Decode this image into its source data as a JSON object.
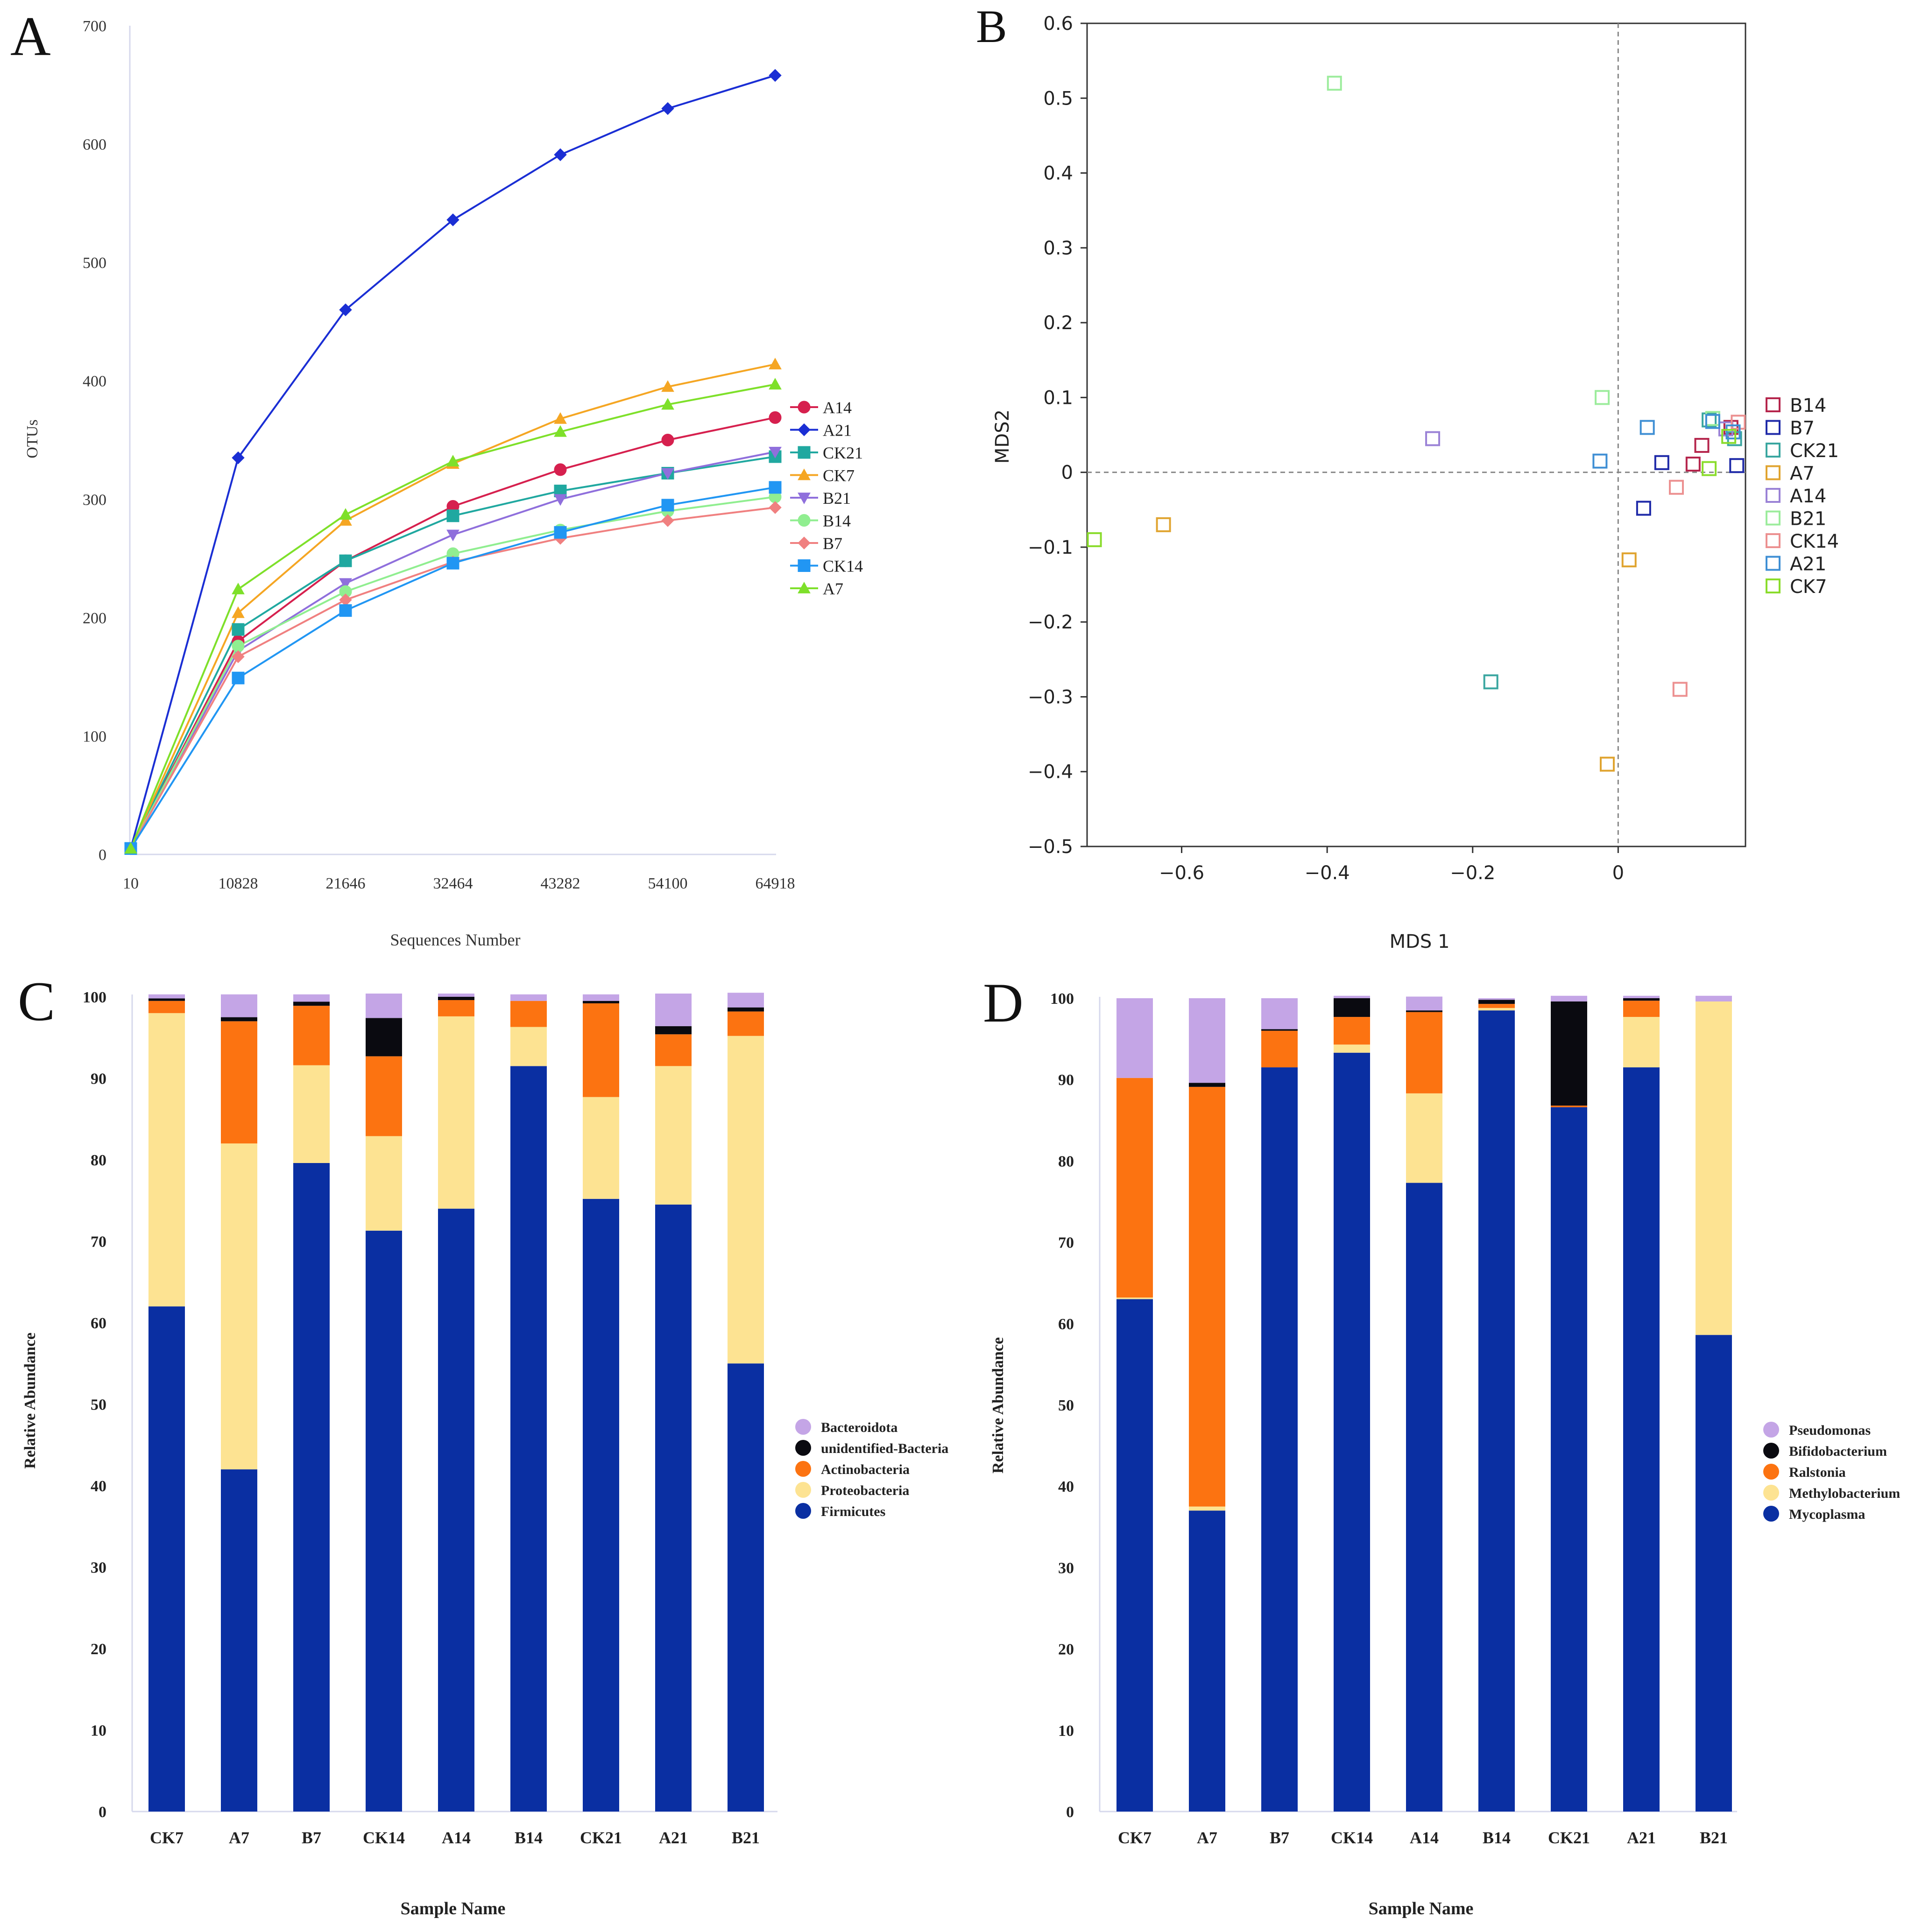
{
  "panels": {
    "a": "A",
    "b": "B",
    "c": "C",
    "d": "D"
  },
  "chart_data": [
    {
      "id": "A",
      "type": "line",
      "title": "",
      "xlabel": "Sequences Number",
      "ylabel": "OTUs",
      "categories": [
        "10",
        "10828",
        "21646",
        "32464",
        "43282",
        "54100",
        "64918"
      ],
      "ylim": [
        0,
        700
      ],
      "yticks": [
        0,
        100,
        200,
        300,
        400,
        500,
        600,
        700
      ],
      "legend": "right",
      "series": [
        {
          "name": "A14",
          "color": "#d6204e",
          "marker": "circle",
          "values": [
            5,
            180,
            248,
            294,
            325,
            350,
            369
          ]
        },
        {
          "name": "A21",
          "color": "#1a2ed4",
          "marker": "diamond",
          "values": [
            5,
            335,
            460,
            536,
            591,
            630,
            658
          ]
        },
        {
          "name": "CK21",
          "color": "#20a8a0",
          "marker": "square",
          "values": [
            5,
            190,
            248,
            286,
            307,
            322,
            336
          ]
        },
        {
          "name": "CK7",
          "color": "#f5a623",
          "marker": "triangle-up",
          "values": [
            5,
            204,
            282,
            330,
            368,
            395,
            414
          ]
        },
        {
          "name": "B21",
          "color": "#8f6fdc",
          "marker": "triangle-down",
          "values": [
            5,
            172,
            229,
            270,
            300,
            322,
            340
          ]
        },
        {
          "name": "B14",
          "color": "#90ee90",
          "marker": "circle",
          "values": [
            5,
            176,
            222,
            254,
            274,
            290,
            302
          ]
        },
        {
          "name": "B7",
          "color": "#f08080",
          "marker": "diamond",
          "values": [
            5,
            167,
            215,
            247,
            267,
            282,
            293
          ]
        },
        {
          "name": "CK14",
          "color": "#2196f3",
          "marker": "square",
          "values": [
            5,
            149,
            206,
            246,
            272,
            295,
            310
          ]
        },
        {
          "name": "A7",
          "color": "#7ee02a",
          "marker": "triangle-up",
          "values": [
            5,
            224,
            287,
            332,
            357,
            380,
            397
          ]
        }
      ]
    },
    {
      "id": "B",
      "type": "scatter",
      "title": "",
      "xlabel": "MDS 1",
      "ylabel": "MDS2",
      "xlim": [
        -0.73,
        0.175
      ],
      "ylim": [
        -0.5,
        0.6
      ],
      "xticks": [
        -0.6,
        -0.4,
        -0.2,
        0
      ],
      "xtick_labels": [
        "−0.6",
        "−0.4",
        "−0.2",
        "0"
      ],
      "yticks": [
        -0.5,
        -0.4,
        -0.3,
        -0.2,
        -0.1,
        0,
        0.1,
        0.2,
        0.3,
        0.4,
        0.5,
        0.6
      ],
      "ytick_labels": [
        "−0.5",
        "−0.4",
        "−0.3",
        "−0.2",
        "−0.1",
        "0",
        "0.1",
        "0.2",
        "0.3",
        "0.4",
        "0.5",
        "0.6"
      ],
      "reference_lines": {
        "x": 0,
        "y": 0
      },
      "legend": "right",
      "series": [
        {
          "name": "B14",
          "color": "#b5254c",
          "points": [
            [
              0.115,
              0.036
            ],
            [
              0.103,
              0.011
            ],
            [
              0.155,
              0.06
            ]
          ]
        },
        {
          "name": "B7",
          "color": "#1f2aa8",
          "points": [
            [
              0.06,
              0.013
            ],
            [
              0.035,
              -0.048
            ],
            [
              0.163,
              0.009
            ]
          ]
        },
        {
          "name": "CK21",
          "color": "#3aa6a0",
          "points": [
            [
              -0.175,
              -0.28
            ],
            [
              0.125,
              0.07
            ],
            [
              0.16,
              0.045
            ]
          ]
        },
        {
          "name": "A7",
          "color": "#e0a430",
          "points": [
            [
              -0.625,
              -0.07
            ],
            [
              0.015,
              -0.117
            ],
            [
              -0.015,
              -0.39
            ]
          ]
        },
        {
          "name": "A14",
          "color": "#9a82d6",
          "points": [
            [
              -0.255,
              0.045
            ],
            [
              0.148,
              0.058
            ]
          ]
        },
        {
          "name": "B21",
          "color": "#9cec9c",
          "points": [
            [
              -0.39,
              0.52
            ],
            [
              -0.022,
              0.1
            ],
            [
              0.13,
              0.072
            ]
          ]
        },
        {
          "name": "CK14",
          "color": "#ec9090",
          "points": [
            [
              0.08,
              -0.02
            ],
            [
              0.085,
              -0.29
            ],
            [
              0.165,
              0.067
            ]
          ]
        },
        {
          "name": "A21",
          "color": "#3f8fd4",
          "points": [
            [
              0.04,
              0.06
            ],
            [
              -0.025,
              0.015
            ],
            [
              0.13,
              0.068
            ],
            [
              0.158,
              0.054
            ]
          ]
        },
        {
          "name": "CK7",
          "color": "#8adc2c",
          "points": [
            [
              -0.72,
              -0.09
            ],
            [
              0.125,
              0.005
            ],
            [
              0.152,
              0.048
            ]
          ]
        }
      ]
    },
    {
      "id": "C",
      "type": "bar",
      "stacked": true,
      "title": "",
      "xlabel": "Sample Name",
      "ylabel": "Relative Abundance",
      "categories": [
        "CK7",
        "A7",
        "B7",
        "CK14",
        "A14",
        "B14",
        "CK21",
        "A21",
        "B21"
      ],
      "ylim": [
        0,
        100
      ],
      "yticks": [
        0,
        10,
        20,
        30,
        40,
        50,
        60,
        70,
        80,
        90,
        100
      ],
      "legend": "right",
      "series": [
        {
          "name": "Firmicutes",
          "color": "#0a2fa2",
          "values": [
            62,
            42,
            79.6,
            71.3,
            74,
            91.5,
            75.2,
            74.5,
            55
          ]
        },
        {
          "name": "Proteobacteria",
          "color": "#fde392",
          "values": [
            36,
            40,
            12,
            11.6,
            23.6,
            4.8,
            12.5,
            17,
            40.2
          ]
        },
        {
          "name": "Actinobacteria",
          "color": "#fc7311",
          "values": [
            1.5,
            15,
            7.3,
            9.8,
            2,
            3.2,
            11.5,
            3.9,
            3
          ]
        },
        {
          "name": "unidentified-Bacteria",
          "color": "#0a0a10",
          "values": [
            0.3,
            0.5,
            0.5,
            4.7,
            0.4,
            0,
            0.3,
            1,
            0.5
          ]
        },
        {
          "name": "Bacteroidota",
          "color": "#c4a5e6",
          "values": [
            0.5,
            2.8,
            0.9,
            3,
            0.4,
            0.8,
            0.8,
            4,
            1.8
          ]
        }
      ],
      "legend_order": [
        "Bacteroidota",
        "unidentified-Bacteria",
        "Actinobacteria",
        "Proteobacteria",
        "Firmicutes"
      ]
    },
    {
      "id": "D",
      "type": "bar",
      "stacked": true,
      "title": "",
      "xlabel": "Sample Name",
      "ylabel": "Relative Abundance",
      "categories": [
        "CK7",
        "A7",
        "B7",
        "CK14",
        "A14",
        "B14",
        "CK21",
        "A21",
        "B21"
      ],
      "ylim": [
        0,
        100
      ],
      "yticks": [
        0,
        10,
        20,
        30,
        40,
        50,
        60,
        70,
        80,
        90,
        100
      ],
      "legend": "right",
      "series": [
        {
          "name": "Mycoplasma",
          "color": "#0a2fa2",
          "values": [
            63,
            37,
            91.5,
            93.3,
            77.3,
            98.5,
            86.6,
            91.5,
            58.6
          ]
        },
        {
          "name": "Methylobacterium",
          "color": "#fde392",
          "values": [
            0.2,
            0.5,
            0,
            1,
            11,
            0.3,
            0,
            6.2,
            41
          ]
        },
        {
          "name": "Ralstonia",
          "color": "#fc7311",
          "values": [
            27,
            51.6,
            4.5,
            3.4,
            10,
            0.5,
            0.2,
            2,
            0
          ]
        },
        {
          "name": "Bifidobacterium",
          "color": "#0a0a10",
          "values": [
            0,
            0.5,
            0.2,
            2.3,
            0.2,
            0.5,
            12.8,
            0.3,
            0
          ]
        },
        {
          "name": "Pseudomonas",
          "color": "#c4a5e6",
          "values": [
            9.8,
            10.4,
            3.8,
            0.3,
            1.7,
            0.2,
            0.7,
            0.3,
            0.7
          ]
        }
      ],
      "legend_order": [
        "Pseudomonas",
        "Bifidobacterium",
        "Ralstonia",
        "Methylobacterium",
        "Mycoplasma"
      ]
    }
  ]
}
